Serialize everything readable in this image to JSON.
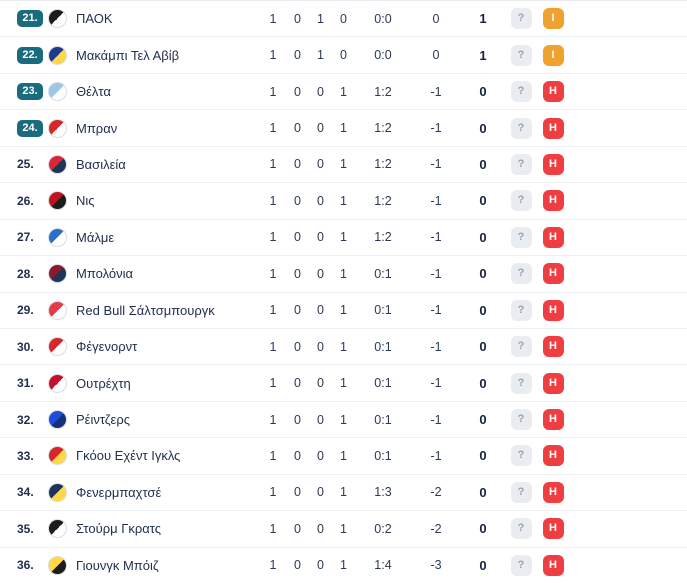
{
  "colors": {
    "pos_badge": "#1a6b7d",
    "form_draw": "#f0a22e",
    "form_loss": "#ef3e42",
    "q_badge_bg": "#e9ecf0",
    "q_badge_text": "#9aa3ae"
  },
  "table": {
    "rows": [
      {
        "pos": "21.",
        "pos_badge": true,
        "team": "ΠΑΟΚ",
        "p": "1",
        "w": "0",
        "d": "1",
        "l": "0",
        "goals": "0:0",
        "diff": "0",
        "pts": "1",
        "q": "?",
        "form": "Ι",
        "form_color": "#f0a22e",
        "logo1": "#1c1c1c",
        "logo2": "#ffffff"
      },
      {
        "pos": "22.",
        "pos_badge": true,
        "team": "Μακάμπι Τελ Αβίβ",
        "p": "1",
        "w": "0",
        "d": "1",
        "l": "0",
        "goals": "0:0",
        "diff": "0",
        "pts": "1",
        "q": "?",
        "form": "Ι",
        "form_color": "#f0a22e",
        "logo1": "#1e3a8a",
        "logo2": "#ffd843"
      },
      {
        "pos": "23.",
        "pos_badge": true,
        "team": "Θέλτα",
        "p": "1",
        "w": "0",
        "d": "0",
        "l": "1",
        "goals": "1:2",
        "diff": "-1",
        "pts": "0",
        "q": "?",
        "form": "Η",
        "form_color": "#ef3e42",
        "logo1": "#9cc7e8",
        "logo2": "#ffffff"
      },
      {
        "pos": "24.",
        "pos_badge": true,
        "team": "Μπραν",
        "p": "1",
        "w": "0",
        "d": "0",
        "l": "1",
        "goals": "1:2",
        "diff": "-1",
        "pts": "0",
        "q": "?",
        "form": "Η",
        "form_color": "#ef3e42",
        "logo1": "#d62828",
        "logo2": "#ffffff"
      },
      {
        "pos": "25.",
        "pos_badge": false,
        "team": "Βασιλεία",
        "p": "1",
        "w": "0",
        "d": "0",
        "l": "1",
        "goals": "1:2",
        "diff": "-1",
        "pts": "0",
        "q": "?",
        "form": "Η",
        "form_color": "#ef3e42",
        "logo1": "#d62839",
        "logo2": "#1d3557"
      },
      {
        "pos": "26.",
        "pos_badge": false,
        "team": "Νις",
        "p": "1",
        "w": "0",
        "d": "0",
        "l": "1",
        "goals": "1:2",
        "diff": "-1",
        "pts": "0",
        "q": "?",
        "form": "Η",
        "form_color": "#ef3e42",
        "logo1": "#c1121f",
        "logo2": "#1c1c1c"
      },
      {
        "pos": "27.",
        "pos_badge": false,
        "team": "Μάλμε",
        "p": "1",
        "w": "0",
        "d": "0",
        "l": "1",
        "goals": "1:2",
        "diff": "-1",
        "pts": "0",
        "q": "?",
        "form": "Η",
        "form_color": "#ef3e42",
        "logo1": "#2a6fc9",
        "logo2": "#ffffff"
      },
      {
        "pos": "28.",
        "pos_badge": false,
        "team": "Μπολόνια",
        "p": "1",
        "w": "0",
        "d": "0",
        "l": "1",
        "goals": "0:1",
        "diff": "-1",
        "pts": "0",
        "q": "?",
        "form": "Η",
        "form_color": "#ef3e42",
        "logo1": "#8b1a2b",
        "logo2": "#1d3557"
      },
      {
        "pos": "29.",
        "pos_badge": false,
        "team": "Red Bull Σάλτσμπουργκ",
        "p": "1",
        "w": "0",
        "d": "0",
        "l": "1",
        "goals": "0:1",
        "diff": "-1",
        "pts": "0",
        "q": "?",
        "form": "Η",
        "form_color": "#ef3e42",
        "logo1": "#e63946",
        "logo2": "#ffffff"
      },
      {
        "pos": "30.",
        "pos_badge": false,
        "team": "Φέγενορντ",
        "p": "1",
        "w": "0",
        "d": "0",
        "l": "1",
        "goals": "0:1",
        "diff": "-1",
        "pts": "0",
        "q": "?",
        "form": "Η",
        "form_color": "#ef3e42",
        "logo1": "#d62828",
        "logo2": "#ffffff"
      },
      {
        "pos": "31.",
        "pos_badge": false,
        "team": "Ουτρέχτη",
        "p": "1",
        "w": "0",
        "d": "0",
        "l": "1",
        "goals": "0:1",
        "diff": "-1",
        "pts": "0",
        "q": "?",
        "form": "Η",
        "form_color": "#ef3e42",
        "logo1": "#c8102e",
        "logo2": "#ffffff"
      },
      {
        "pos": "32.",
        "pos_badge": false,
        "team": "Ρέιντζερς",
        "p": "1",
        "w": "0",
        "d": "0",
        "l": "1",
        "goals": "0:1",
        "diff": "-1",
        "pts": "0",
        "q": "?",
        "form": "Η",
        "form_color": "#ef3e42",
        "logo1": "#1d4ed8",
        "logo2": "#16307a"
      },
      {
        "pos": "33.",
        "pos_badge": false,
        "team": "Γκόου Εχέντ Ιγκλς",
        "p": "1",
        "w": "0",
        "d": "0",
        "l": "1",
        "goals": "0:1",
        "diff": "-1",
        "pts": "0",
        "q": "?",
        "form": "Η",
        "form_color": "#ef3e42",
        "logo1": "#d62828",
        "logo2": "#ffd843"
      },
      {
        "pos": "34.",
        "pos_badge": false,
        "team": "Φενερμπαχτσέ",
        "p": "1",
        "w": "0",
        "d": "0",
        "l": "1",
        "goals": "1:3",
        "diff": "-2",
        "pts": "0",
        "q": "?",
        "form": "Η",
        "form_color": "#ef3e42",
        "logo1": "#1d3557",
        "logo2": "#ffd843"
      },
      {
        "pos": "35.",
        "pos_badge": false,
        "team": "Στούρμ Γκρατς",
        "p": "1",
        "w": "0",
        "d": "0",
        "l": "1",
        "goals": "0:2",
        "diff": "-2",
        "pts": "0",
        "q": "?",
        "form": "Η",
        "form_color": "#ef3e42",
        "logo1": "#1c1c1c",
        "logo2": "#ffffff"
      },
      {
        "pos": "36.",
        "pos_badge": false,
        "team": "Γιουνγκ Μπόιζ",
        "p": "1",
        "w": "0",
        "d": "0",
        "l": "1",
        "goals": "1:4",
        "diff": "-3",
        "pts": "0",
        "q": "?",
        "form": "Η",
        "form_color": "#ef3e42",
        "logo1": "#ffd843",
        "logo2": "#1c1c1c"
      }
    ]
  }
}
